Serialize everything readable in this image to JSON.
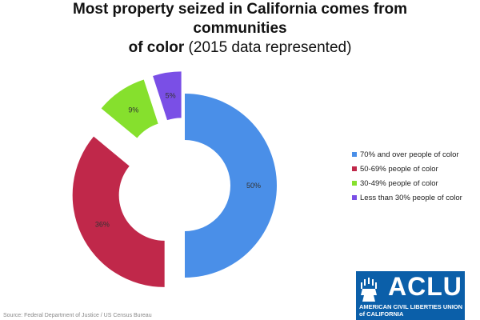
{
  "title": {
    "bold": "Most property seized in California comes from communities of color",
    "line1": "Most property seized in California comes from communities",
    "line2_bold": "of color",
    "line2_normal": " (2015 data represented)"
  },
  "chart_data": {
    "type": "pie",
    "style": "donut-exploded",
    "title": "Most property seized in California comes from communities of color (2015 data represented)",
    "categories": [
      "70% and over people of color",
      "50-69% people of color",
      "30-49% people of color",
      "Less than 30% people of color"
    ],
    "values": [
      50,
      36,
      9,
      5
    ],
    "labels": [
      "50%",
      "36%",
      "9%",
      "5%"
    ],
    "colors": [
      "#4a8fe8",
      "#c0284a",
      "#86e02d",
      "#7a4fe6"
    ],
    "legend_position": "right"
  },
  "logo": {
    "name": "ACLU",
    "subtitle_line1": "AMERICAN CIVIL LIBERTIES UNION",
    "subtitle_line2": "of CALIFORNIA"
  },
  "footnote": "Source: Federal Department of Justice / US Census Bureau"
}
